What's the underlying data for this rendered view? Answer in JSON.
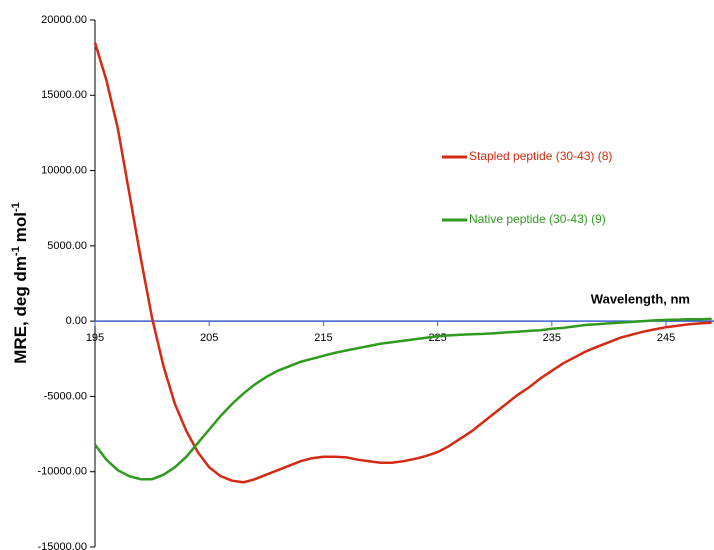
{
  "chart_data": {
    "type": "line",
    "y_label": [
      "MRE, deg dm",
      "-1",
      "mol",
      "-1"
    ],
    "x_label": "Wavelength, nm",
    "x": [
      195,
      196,
      197,
      198,
      199,
      200,
      201,
      202,
      203,
      204,
      205,
      206,
      207,
      208,
      209,
      210,
      211,
      212,
      213,
      214,
      215,
      216,
      217,
      218,
      219,
      220,
      221,
      222,
      223,
      224,
      225,
      226,
      227,
      228,
      229,
      230,
      231,
      232,
      233,
      234,
      235,
      236,
      237,
      238,
      239,
      240,
      241,
      242,
      243,
      244,
      245,
      246,
      247,
      248,
      249
    ],
    "series": [
      {
        "name": "Stapled peptide (30-43) (8)",
        "color": "#d42a14",
        "values": [
          18500,
          16000,
          12800,
          8500,
          4200,
          200,
          -3000,
          -5500,
          -7300,
          -8700,
          -9700,
          -10300,
          -10600,
          -10700,
          -10500,
          -10200,
          -9900,
          -9600,
          -9300,
          -9100,
          -9000,
          -9000,
          -9050,
          -9200,
          -9300,
          -9400,
          -9400,
          -9300,
          -9150,
          -8950,
          -8700,
          -8300,
          -7800,
          -7300,
          -6700,
          -6100,
          -5500,
          -4900,
          -4400,
          -3800,
          -3300,
          -2800,
          -2400,
          -2000,
          -1700,
          -1400,
          -1100,
          -900,
          -700,
          -550,
          -400,
          -300,
          -200,
          -150,
          -100
        ]
      },
      {
        "name": "Native peptide (30-43) (9)",
        "color": "#2f9a1f",
        "values": [
          -8200,
          -9200,
          -9900,
          -10300,
          -10500,
          -10500,
          -10200,
          -9700,
          -9000,
          -8100,
          -7200,
          -6300,
          -5500,
          -4800,
          -4200,
          -3700,
          -3300,
          -3000,
          -2700,
          -2500,
          -2300,
          -2100,
          -1950,
          -1800,
          -1650,
          -1500,
          -1400,
          -1300,
          -1200,
          -1100,
          -1000,
          -950,
          -900,
          -870,
          -850,
          -800,
          -750,
          -700,
          -650,
          -600,
          -500,
          -450,
          -350,
          -250,
          -200,
          -150,
          -100,
          -50,
          0,
          50,
          80,
          100,
          120,
          130,
          150
        ]
      }
    ],
    "xlim": [
      195,
      249.2
    ],
    "xticks": [
      195,
      205,
      215,
      225,
      235,
      245
    ],
    "ylim": [
      -15000,
      20000
    ],
    "yticks": [
      {
        "value": -15000,
        "label": "-15000.00"
      },
      {
        "value": -10000,
        "label": "-10000.00"
      },
      {
        "value": -5000,
        "label": "-5000.00"
      },
      {
        "value": 0,
        "label": "0.00"
      },
      {
        "value": 5000,
        "label": "5000.00"
      },
      {
        "value": 10000,
        "label": "10000.00"
      },
      {
        "value": 15000,
        "label": "15000.00"
      },
      {
        "value": 20000,
        "label": "20000.00"
      }
    ]
  }
}
